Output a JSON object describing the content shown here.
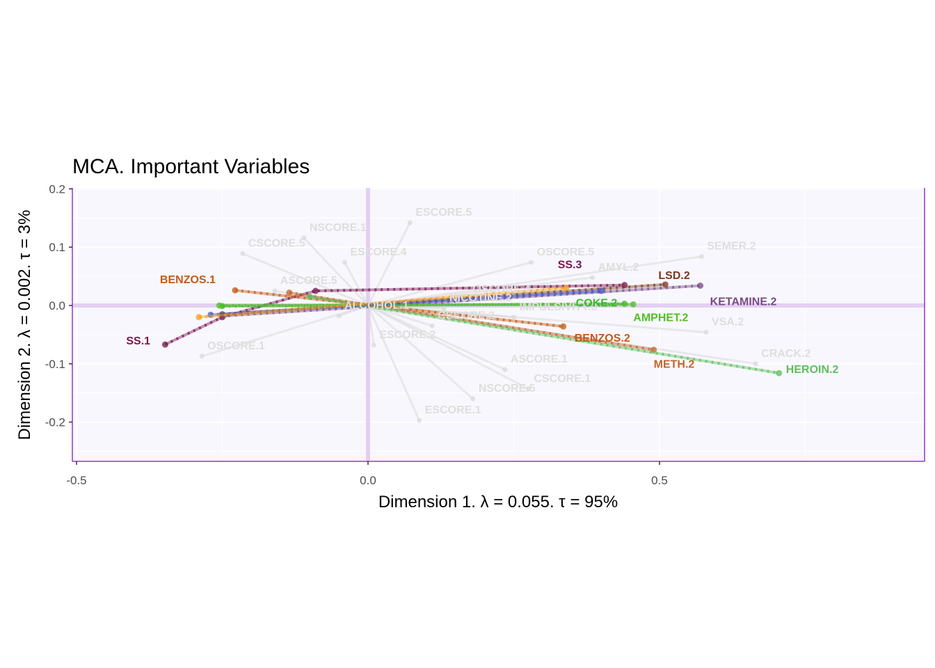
{
  "chart_data": {
    "type": "scatter",
    "title": "MCA. Important Variables",
    "xlabel": "Dimension 1.   λ = 0.055.  τ = 95%",
    "ylabel": "Dimension 2.   λ = 0.002.  τ = 3%",
    "xlim": [
      -0.51,
      0.95
    ],
    "ylim": [
      -0.265,
      0.2
    ],
    "x_ticks": [
      -0.5,
      0.0,
      0.5
    ],
    "x_tick_labels": [
      "-0.5",
      "0.0",
      "0.5"
    ],
    "y_ticks": [
      -0.2,
      -0.1,
      0.0,
      0.1,
      0.2
    ],
    "y_tick_labels": [
      "-0.2",
      "-0.1",
      "0.0",
      "0.1",
      "0.2"
    ],
    "grid": true,
    "background_color": "#f8f7fd",
    "axis_color": "#9932cc",
    "highlight_series": [
      {
        "name": "SS",
        "color": "#7b1450",
        "points": [
          {
            "label": "SS.1",
            "x": -0.348,
            "y": -0.067
          },
          {
            "label": "",
            "x": -0.25,
            "y": -0.02
          },
          {
            "label": "",
            "x": -0.09,
            "y": 0.025
          },
          {
            "label": "SS.3",
            "x": 0.44,
            "y": 0.035
          }
        ]
      },
      {
        "name": "KETAMINE",
        "color": "#7a4b87",
        "points": [
          {
            "label": "",
            "x": -0.25,
            "y": -0.018
          },
          {
            "label": "KETAMINE.2",
            "x": 0.57,
            "y": 0.034
          }
        ]
      },
      {
        "name": "LSD",
        "color": "#7a3a1e",
        "points": [
          {
            "label": "",
            "x": -0.25,
            "y": -0.015
          },
          {
            "label": "LSD.2",
            "x": 0.51,
            "y": 0.036
          }
        ]
      },
      {
        "name": "COKE",
        "color": "#3cb82e",
        "points": [
          {
            "label": "",
            "x": -0.25,
            "y": -0.001
          },
          {
            "label": "COKE.2",
            "x": 0.44,
            "y": 0.003
          }
        ]
      },
      {
        "name": "AMPHET",
        "color": "#52c026",
        "points": [
          {
            "label": "",
            "x": -0.255,
            "y": 0.0
          },
          {
            "label": "AMPHET.2",
            "x": 0.455,
            "y": 0.002
          }
        ]
      },
      {
        "name": "BENZOS",
        "color": "#c45a12",
        "points": [
          {
            "label": "BENZOS.1",
            "x": -0.228,
            "y": 0.026
          },
          {
            "label": "BENZOS.2",
            "x": 0.335,
            "y": -0.036
          }
        ]
      },
      {
        "name": "METH",
        "color": "#c4642a",
        "points": [
          {
            "label": "",
            "x": -0.135,
            "y": 0.022
          },
          {
            "label": "METH.2",
            "x": 0.49,
            "y": -0.076
          }
        ]
      },
      {
        "name": "HEROIN",
        "color": "#5cbf5c",
        "points": [
          {
            "label": "",
            "x": -0.1,
            "y": 0.015
          },
          {
            "label": "HEROIN.2",
            "x": 0.705,
            "y": -0.116
          }
        ]
      },
      {
        "name": "BLUE",
        "color": "#3f5bd6",
        "points": [
          {
            "label": "",
            "x": -0.27,
            "y": -0.016
          },
          {
            "label": "",
            "x": 0.4,
            "y": 0.025
          }
        ]
      },
      {
        "name": "ORANGE",
        "color": "#f5a11a",
        "points": [
          {
            "label": "",
            "x": -0.29,
            "y": -0.02
          },
          {
            "label": "",
            "x": 0.34,
            "y": 0.03
          }
        ]
      }
    ],
    "background_points": [
      {
        "label": "ESCORE.5",
        "x": 0.072,
        "y": 0.142
      },
      {
        "label": "NSCORE.1",
        "x": -0.11,
        "y": 0.116
      },
      {
        "label": "CSCORE.5",
        "x": -0.215,
        "y": 0.089
      },
      {
        "label": "ESCORE.4",
        "x": -0.04,
        "y": 0.074
      },
      {
        "label": "OSCORE.5",
        "x": 0.28,
        "y": 0.074
      },
      {
        "label": "SEMER.2",
        "x": 0.572,
        "y": 0.084
      },
      {
        "label": "ASCORE.5",
        "x": -0.16,
        "y": 0.025
      },
      {
        "label": "AMYL.2",
        "x": 0.385,
        "y": 0.048
      },
      {
        "label": "OSCORE.4",
        "x": 0.17,
        "y": 0.01
      },
      {
        "label": "NICOTINE.2",
        "x": 0.13,
        "y": -0.005
      },
      {
        "label": "IMPULSIVITY.3",
        "x": 0.25,
        "y": -0.02
      },
      {
        "label": "ALCOHOL.1",
        "x": -0.05,
        "y": -0.018
      },
      {
        "label": "CSCORE.2",
        "x": 0.11,
        "y": -0.035
      },
      {
        "label": "VSA.2",
        "x": 0.58,
        "y": -0.046
      },
      {
        "label": "OSCORE.1",
        "x": -0.285,
        "y": -0.087
      },
      {
        "label": "ESCORE.2",
        "x": 0.01,
        "y": -0.068
      },
      {
        "label": "ASCORE.1",
        "x": 0.235,
        "y": -0.11
      },
      {
        "label": "CSCORE.1",
        "x": 0.275,
        "y": -0.143
      },
      {
        "label": "CRACK.2",
        "x": 0.665,
        "y": -0.1
      },
      {
        "label": "NSCORE.5",
        "x": 0.18,
        "y": -0.16
      },
      {
        "label": "ESCORE.1",
        "x": 0.088,
        "y": -0.197
      }
    ]
  }
}
